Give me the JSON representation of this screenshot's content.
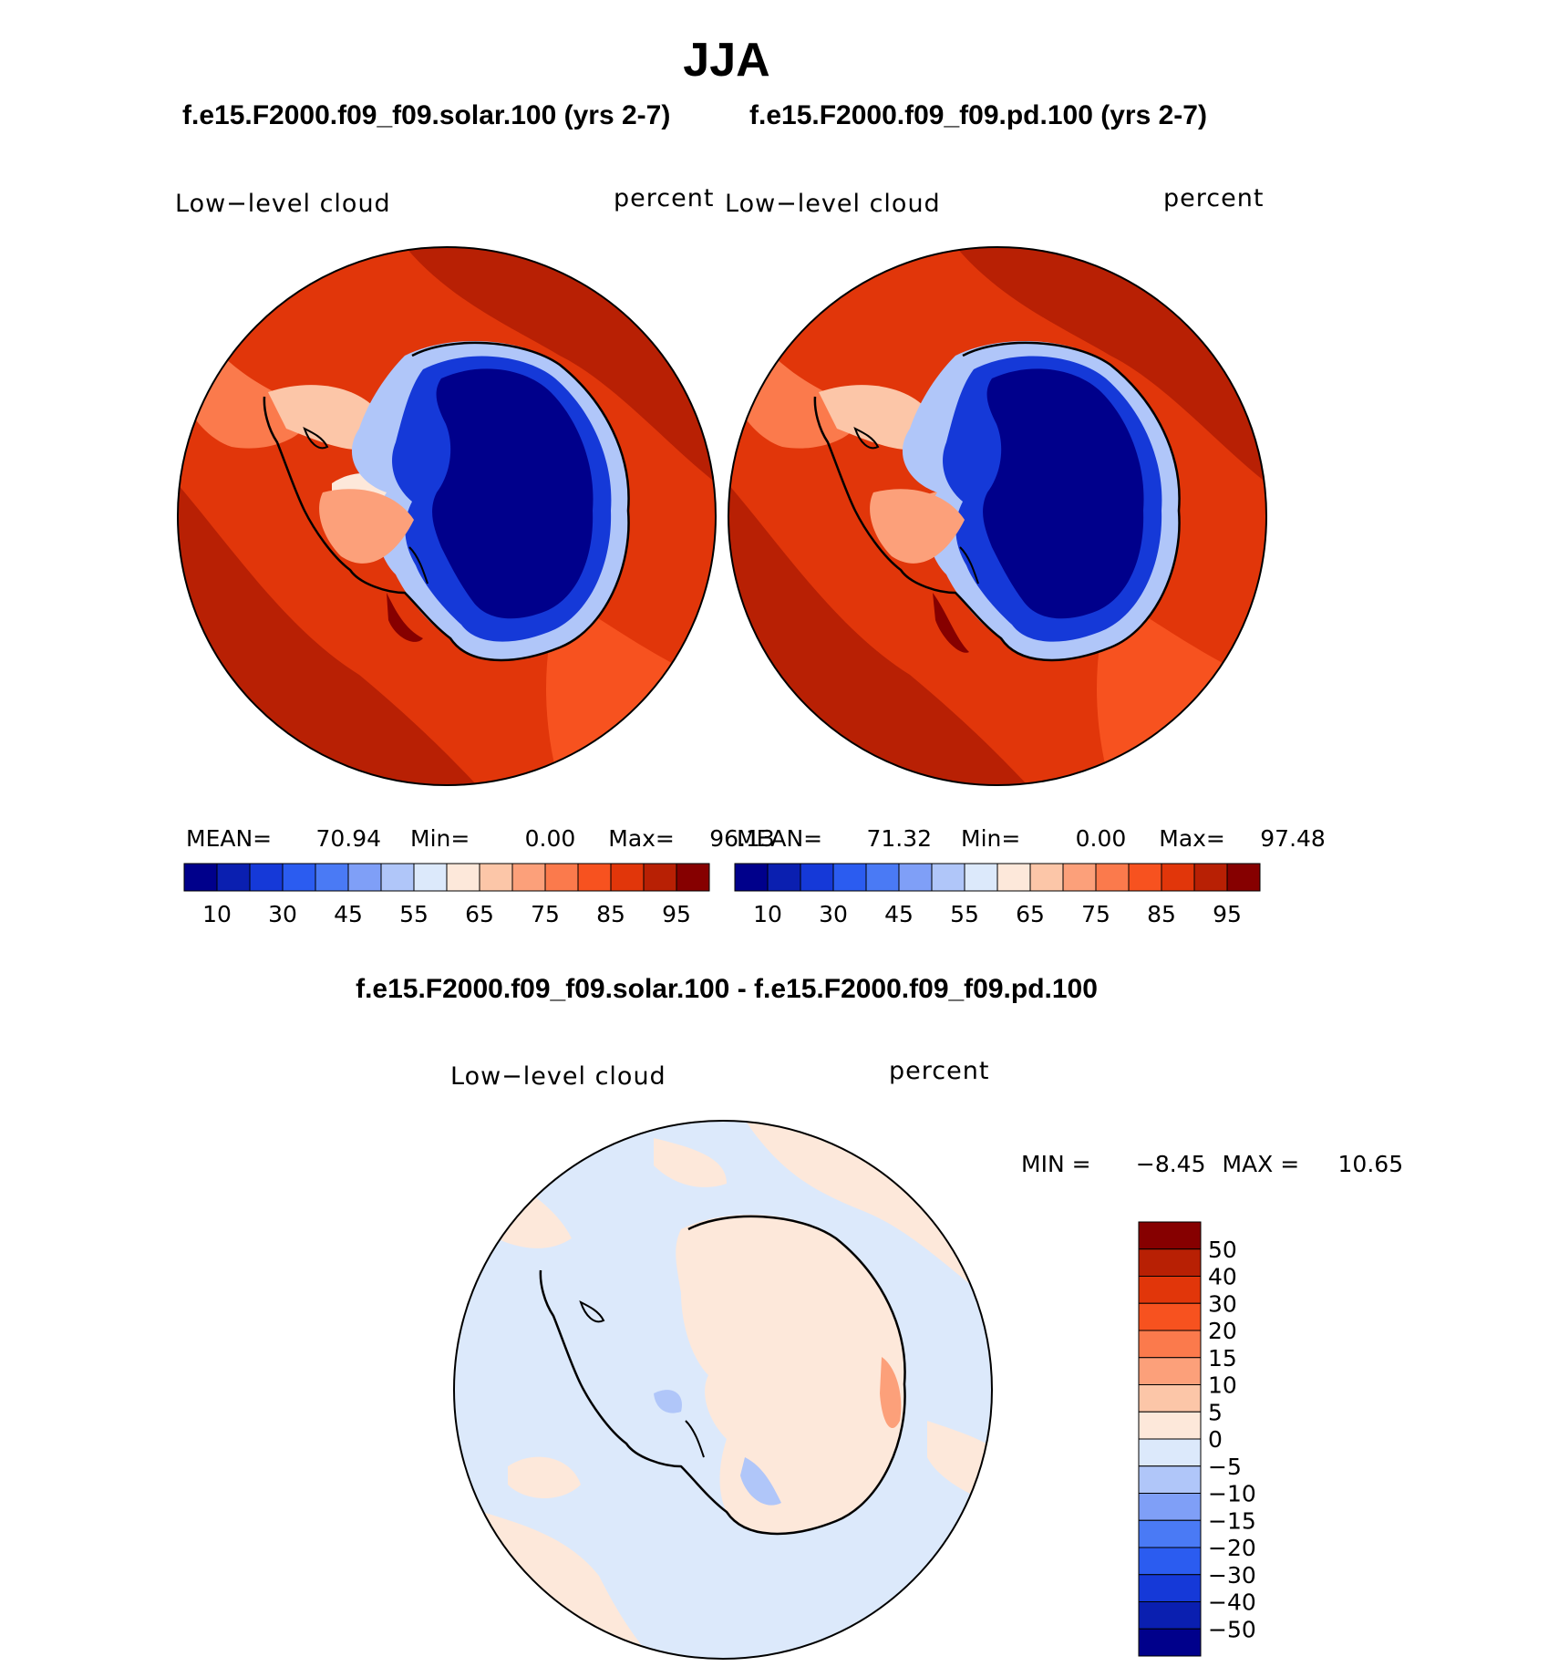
{
  "page": {
    "title": "JJA",
    "diff_title": "f.e15.F2000.f09_f09.solar.100 - f.e15.F2000.f09_f09.pd.100"
  },
  "panels": [
    {
      "case": "f.e15.F2000.f09_f09.solar.100 (yrs 2-7)",
      "variable": "Low−level cloud",
      "units": "percent",
      "mean_label": "MEAN=",
      "mean": "70.94",
      "min_label": "Min=",
      "min": "0.00",
      "max_label": "Max=",
      "max": "96.13"
    },
    {
      "case": "f.e15.F2000.f09_f09.pd.100 (yrs 2-7)",
      "variable": "Low−level cloud",
      "units": "percent",
      "mean_label": "MEAN=",
      "mean": "71.32",
      "min_label": "Min=",
      "min": "0.00",
      "max_label": "Max=",
      "max": "97.48"
    }
  ],
  "diff_panel": {
    "variable": "Low−level cloud",
    "units": "percent",
    "min_label": "MIN =",
    "min": "−8.45",
    "max_label": "MAX =",
    "max": "10.65"
  },
  "colorbar_abs": {
    "colors": [
      "#00008b",
      "#0a1fb0",
      "#1539d8",
      "#2b5cf0",
      "#4a7af5",
      "#7f9ff7",
      "#b0c6f9",
      "#dce9fb",
      "#fde8da",
      "#fcc6a8",
      "#fca07a",
      "#fb7a4c",
      "#f7521f",
      "#e1360a",
      "#b82004",
      "#860000"
    ],
    "labels": [
      "10",
      "30",
      "45",
      "55",
      "65",
      "75",
      "85",
      "95"
    ]
  },
  "colorbar_diff": {
    "colors": [
      "#860000",
      "#b82004",
      "#e1360a",
      "#f7521f",
      "#fb7a4c",
      "#fca07a",
      "#fcc6a8",
      "#fde8da",
      "#dce9fb",
      "#b0c6f9",
      "#7f9ff7",
      "#4a7af5",
      "#2b5cf0",
      "#1539d8",
      "#0a1fb0",
      "#00008b"
    ],
    "labels": [
      "50",
      "40",
      "30",
      "20",
      "15",
      "10",
      "5",
      "0",
      "−5",
      "−10",
      "−15",
      "−20",
      "−30",
      "−40",
      "−50"
    ]
  },
  "map_colors": {
    "ocean_base": "#e1360a",
    "ocean_dark": "#b82004",
    "ocean_light": "#f7521f",
    "ice": "#00008b",
    "ice_edge": "#1539d8",
    "ice_rim": "#b0c6f9",
    "diff_base": "#dce9fb",
    "diff_pos": "#fde8da",
    "diff_neg": "#b0c6f9"
  }
}
